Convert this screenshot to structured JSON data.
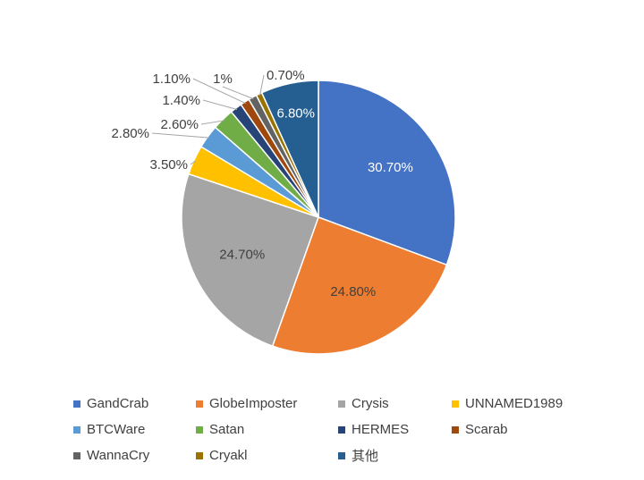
{
  "chart_data": {
    "type": "pie",
    "title": "",
    "legend_position": "bottom",
    "start_angle_deg": 0,
    "direction": "clockwise",
    "slices": [
      {
        "label": "GandCrab",
        "value": 30.7,
        "data_label": "30.70%",
        "color": "#4472C4",
        "label_color": "#ffffff"
      },
      {
        "label": "GlobeImposter",
        "value": 24.8,
        "data_label": "24.80%",
        "color": "#ED7D31",
        "label_color": "#404040"
      },
      {
        "label": "Crysis",
        "value": 24.7,
        "data_label": "24.70%",
        "color": "#A5A5A5",
        "label_color": "#404040"
      },
      {
        "label": "UNNAMED1989",
        "value": 3.5,
        "data_label": "3.50%",
        "color": "#FFC000",
        "label_color": "#404040"
      },
      {
        "label": "BTCWare",
        "value": 2.8,
        "data_label": "2.80%",
        "color": "#5B9BD5",
        "label_color": "#404040"
      },
      {
        "label": "Satan",
        "value": 2.6,
        "data_label": "2.60%",
        "color": "#70AD47",
        "label_color": "#404040"
      },
      {
        "label": "HERMES",
        "value": 1.4,
        "data_label": "1.40%",
        "color": "#264478",
        "label_color": "#404040"
      },
      {
        "label": "Scarab",
        "value": 1.1,
        "data_label": "1.10%",
        "color": "#9E480E",
        "label_color": "#404040"
      },
      {
        "label": "WannaCry",
        "value": 1.0,
        "data_label": "1%",
        "color": "#636363",
        "label_color": "#404040"
      },
      {
        "label": "Cryakl",
        "value": 0.7,
        "data_label": "0.70%",
        "color": "#997300",
        "label_color": "#404040"
      },
      {
        "label": "其他",
        "value": 6.8,
        "data_label": "6.80%",
        "color": "#255E91",
        "label_color": "#ffffff"
      }
    ]
  },
  "legend": {
    "rows": [
      [
        {
          "label": "GandCrab",
          "color": "#4472C4"
        },
        {
          "label": "GlobeImposter",
          "color": "#ED7D31"
        },
        {
          "label": "Crysis",
          "color": "#A5A5A5"
        },
        {
          "label": "UNNAMED1989",
          "color": "#FFC000"
        }
      ],
      [
        {
          "label": "BTCWare",
          "color": "#5B9BD5"
        },
        {
          "label": "Satan",
          "color": "#70AD47"
        },
        {
          "label": "HERMES",
          "color": "#264478"
        },
        {
          "label": "Scarab",
          "color": "#9E480E"
        }
      ],
      [
        {
          "label": "WannaCry",
          "color": "#636363"
        },
        {
          "label": "Cryakl",
          "color": "#997300"
        },
        {
          "label": "其他",
          "color": "#255E91"
        }
      ]
    ]
  }
}
